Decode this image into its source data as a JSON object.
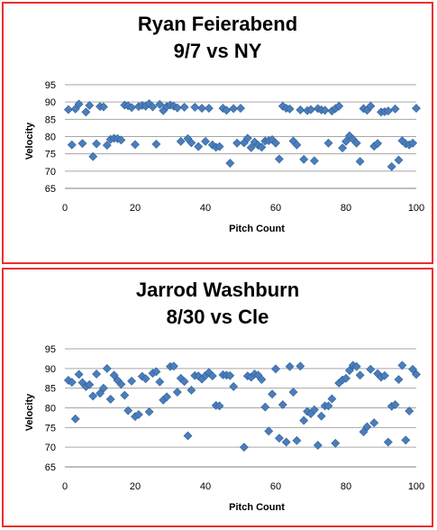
{
  "colors": {
    "border": "#e8312d",
    "marker": "#4a7ebb",
    "marker_stroke": "#2f5e99",
    "grid": "#a6a6a6"
  },
  "chart_data": [
    {
      "type": "scatter",
      "title_line1": "Ryan Feierabend",
      "title_line2": "9/7 vs NY",
      "xlabel": "Pitch Count",
      "ylabel": "Velocity",
      "xlim": [
        0,
        100
      ],
      "ylim": [
        65,
        95
      ],
      "xticks": [
        0,
        20,
        40,
        60,
        80,
        100
      ],
      "yticks": [
        65,
        70,
        75,
        80,
        85,
        90,
        95
      ],
      "grid": "horizontal",
      "points": [
        [
          1,
          87.8
        ],
        [
          2,
          77.6
        ],
        [
          3,
          88
        ],
        [
          4,
          89.4
        ],
        [
          5,
          78
        ],
        [
          6,
          87.1
        ],
        [
          7,
          89
        ],
        [
          8,
          74.2
        ],
        [
          9,
          77.9
        ],
        [
          10,
          88.7
        ],
        [
          11,
          88.6
        ],
        [
          12,
          77.5
        ],
        [
          13,
          79.2
        ],
        [
          14,
          79.5
        ],
        [
          15,
          79.4
        ],
        [
          16,
          79
        ],
        [
          17,
          89.1
        ],
        [
          18,
          88.9
        ],
        [
          19,
          88.4
        ],
        [
          20,
          77.7
        ],
        [
          21,
          88.7
        ],
        [
          22,
          89
        ],
        [
          23,
          88.8
        ],
        [
          24,
          89.5
        ],
        [
          25,
          88.6
        ],
        [
          26,
          77.8
        ],
        [
          27,
          89.3
        ],
        [
          28,
          87.5
        ],
        [
          29,
          88.7
        ],
        [
          30,
          89.1
        ],
        [
          31,
          88.8
        ],
        [
          32,
          88.3
        ],
        [
          33,
          78.6
        ],
        [
          34,
          88.5
        ],
        [
          35,
          79.4
        ],
        [
          36,
          78.2
        ],
        [
          37,
          88.5
        ],
        [
          38,
          77.1
        ],
        [
          39,
          88.2
        ],
        [
          40,
          78.6
        ],
        [
          41,
          88.2
        ],
        [
          42,
          77.6
        ],
        [
          43,
          76.9
        ],
        [
          44,
          77.1
        ],
        [
          45,
          88.2
        ],
        [
          46,
          87.6
        ],
        [
          47,
          72.3
        ],
        [
          48,
          88.1
        ],
        [
          49,
          78.1
        ],
        [
          50,
          88.2
        ],
        [
          51,
          78.2
        ],
        [
          52,
          79.5
        ],
        [
          53,
          76.8
        ],
        [
          54,
          78.4
        ],
        [
          55,
          77.5
        ],
        [
          56,
          76.9
        ],
        [
          57,
          78.7
        ],
        [
          58,
          78.8
        ],
        [
          59,
          79.1
        ],
        [
          60,
          78.1
        ],
        [
          61,
          73.5
        ],
        [
          62,
          88.8
        ],
        [
          63,
          88.2
        ],
        [
          64,
          88
        ],
        [
          65,
          78.7
        ],
        [
          66,
          77.6
        ],
        [
          67,
          87.7
        ],
        [
          68,
          73.4
        ],
        [
          69,
          87.5
        ],
        [
          70,
          87.8
        ],
        [
          71,
          73
        ],
        [
          72,
          88.1
        ],
        [
          73,
          87.7
        ],
        [
          74,
          87.6
        ],
        [
          75,
          78.1
        ],
        [
          76,
          87.4
        ],
        [
          77,
          88.1
        ],
        [
          78,
          88.8
        ],
        [
          79,
          76.7
        ],
        [
          80,
          78.6
        ],
        [
          81,
          80.2
        ],
        [
          82,
          79.2
        ],
        [
          83,
          78.1
        ],
        [
          84,
          72.8
        ],
        [
          85,
          88.1
        ],
        [
          86,
          87.6
        ],
        [
          87,
          88.8
        ],
        [
          88,
          77.2
        ],
        [
          89,
          78
        ],
        [
          90,
          87.1
        ],
        [
          91,
          87.2
        ],
        [
          92,
          87.4
        ],
        [
          93,
          71.3
        ],
        [
          94,
          88
        ],
        [
          95,
          73.2
        ],
        [
          96,
          78.8
        ],
        [
          97,
          77.9
        ],
        [
          98,
          77.6
        ],
        [
          99,
          78.1
        ],
        [
          100,
          88.2
        ]
      ]
    },
    {
      "type": "scatter",
      "title_line1": "Jarrod Washburn",
      "title_line2": "8/30 vs Cle",
      "xlabel": "Pitch Count",
      "ylabel": "Velocity",
      "xlim": [
        0,
        100
      ],
      "ylim": [
        65,
        95
      ],
      "xticks": [
        0,
        20,
        40,
        60,
        80,
        100
      ],
      "yticks": [
        65,
        70,
        75,
        80,
        85,
        90,
        95
      ],
      "grid": "horizontal",
      "points": [
        [
          1,
          87
        ],
        [
          2,
          86.5
        ],
        [
          3,
          77.2
        ],
        [
          4,
          88.5
        ],
        [
          5,
          86.4
        ],
        [
          6,
          85.4
        ],
        [
          7,
          85.9
        ],
        [
          8,
          83
        ],
        [
          9,
          88.6
        ],
        [
          10,
          83.7
        ],
        [
          11,
          85
        ],
        [
          12,
          90
        ],
        [
          13,
          82.2
        ],
        [
          14,
          88.3
        ],
        [
          15,
          87
        ],
        [
          16,
          86
        ],
        [
          17,
          83.2
        ],
        [
          18,
          79.3
        ],
        [
          19,
          86.8
        ],
        [
          20,
          77.8
        ],
        [
          21,
          78.3
        ],
        [
          22,
          88
        ],
        [
          23,
          87.4
        ],
        [
          24,
          79
        ],
        [
          25,
          88.8
        ],
        [
          26,
          89.2
        ],
        [
          27,
          86.6
        ],
        [
          28,
          82
        ],
        [
          29,
          82.8
        ],
        [
          30,
          90.5
        ],
        [
          31,
          90.6
        ],
        [
          32,
          84
        ],
        [
          33,
          87.5
        ],
        [
          34,
          86.7
        ],
        [
          35,
          72.9
        ],
        [
          36,
          84.5
        ],
        [
          37,
          88.2
        ],
        [
          38,
          88.1
        ],
        [
          39,
          87.3
        ],
        [
          40,
          88.2
        ],
        [
          41,
          89
        ],
        [
          42,
          88.1
        ],
        [
          43,
          80.6
        ],
        [
          44,
          80.5
        ],
        [
          45,
          88.4
        ],
        [
          46,
          88.3
        ],
        [
          47,
          88.2
        ],
        [
          48,
          85.4
        ],
        [
          51,
          70
        ],
        [
          52,
          88.1
        ],
        [
          53,
          87.8
        ],
        [
          54,
          88.6
        ],
        [
          55,
          88.3
        ],
        [
          56,
          87.2
        ],
        [
          57,
          80.2
        ],
        [
          58,
          74.1
        ],
        [
          59,
          83.5
        ],
        [
          60,
          89.9
        ],
        [
          61,
          72.3
        ],
        [
          62,
          80.8
        ],
        [
          63,
          71.3
        ],
        [
          64,
          90.5
        ],
        [
          65,
          84
        ],
        [
          66,
          71.7
        ],
        [
          67,
          90.6
        ],
        [
          68,
          76.8
        ],
        [
          69,
          79.1
        ],
        [
          70,
          78.5
        ],
        [
          71,
          79.5
        ],
        [
          72,
          70.5
        ],
        [
          73,
          77.9
        ],
        [
          74,
          80.5
        ],
        [
          75,
          80.5
        ],
        [
          76,
          82.3
        ],
        [
          77,
          71
        ],
        [
          78,
          86.3
        ],
        [
          79,
          87.1
        ],
        [
          80,
          87.5
        ],
        [
          81,
          89.5
        ],
        [
          82,
          90.8
        ],
        [
          83,
          90.5
        ],
        [
          84,
          88.3
        ],
        [
          85,
          73.9
        ],
        [
          86,
          75.2
        ],
        [
          87,
          89.8
        ],
        [
          88,
          76.2
        ],
        [
          89,
          88.7
        ],
        [
          90,
          87.8
        ],
        [
          91,
          88.2
        ],
        [
          92,
          71.3
        ],
        [
          93,
          80.4
        ],
        [
          94,
          80.8
        ],
        [
          95,
          87.2
        ],
        [
          96,
          90.8
        ],
        [
          97,
          71.8
        ],
        [
          98,
          79.2
        ],
        [
          99,
          89.8
        ],
        [
          100,
          88.5
        ]
      ]
    }
  ]
}
